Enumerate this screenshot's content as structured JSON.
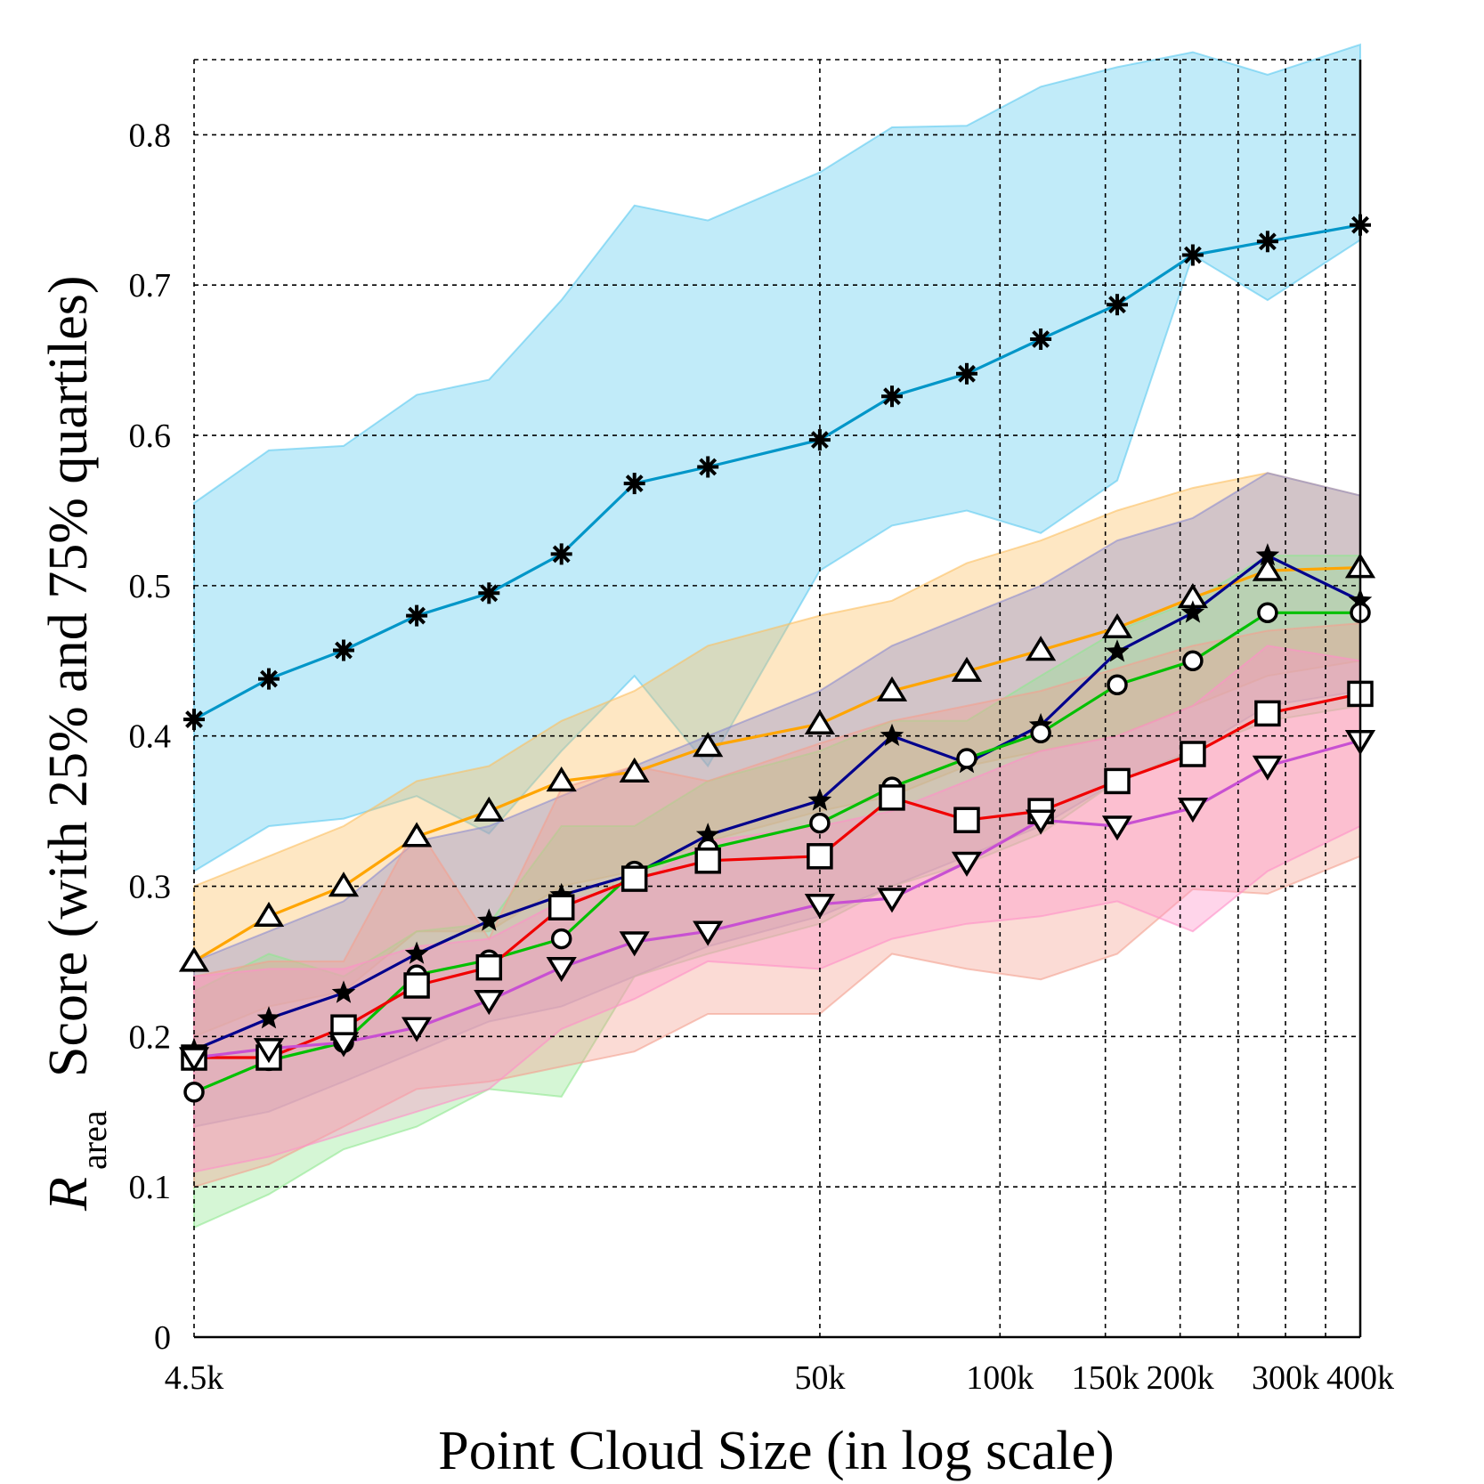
{
  "chart_data": {
    "type": "line",
    "xscale": "log",
    "xlabel": "Point Cloud Size (in log scale)",
    "ylabel": {
      "symbol": "R",
      "subscript": "area",
      "text": "Score (with 25% and 75% quartiles)"
    },
    "xlim": [
      4500,
      400000
    ],
    "ylim": [
      0,
      0.85
    ],
    "grid": true,
    "x_ticks": [
      {
        "value": 4500,
        "label": "4.5k"
      },
      {
        "value": 50000,
        "label": "50k"
      },
      {
        "value": 100000,
        "label": "100k"
      },
      {
        "value": 150000,
        "label": "150k"
      },
      {
        "value": 200000,
        "label": "200k"
      },
      {
        "value": 300000,
        "label": "300k"
      },
      {
        "value": 400000,
        "label": "400k"
      }
    ],
    "x_minor_grid": [
      250000,
      350000
    ],
    "y_ticks": [
      {
        "value": 0,
        "label": "0"
      },
      {
        "value": 0.1,
        "label": "0.1"
      },
      {
        "value": 0.2,
        "label": "0.2"
      },
      {
        "value": 0.3,
        "label": "0.3"
      },
      {
        "value": 0.4,
        "label": "0.4"
      },
      {
        "value": 0.5,
        "label": "0.5"
      },
      {
        "value": 0.6,
        "label": "0.6"
      },
      {
        "value": 0.7,
        "label": "0.7"
      },
      {
        "value": 0.8,
        "label": "0.8"
      }
    ],
    "x": [
      4500,
      6000,
      8000,
      10600,
      14000,
      18500,
      24500,
      32500,
      50000,
      66000,
      88000,
      117000,
      157000,
      210000,
      280000,
      400000
    ],
    "series": [
      {
        "color": "#0096c8",
        "marker": "asterisk",
        "band_color": "#5ccaf0",
        "values": [
          0.411,
          0.438,
          0.457,
          0.48,
          0.495,
          0.521,
          0.568,
          0.579,
          0.597,
          0.626,
          0.641,
          0.664,
          0.687,
          0.72,
          0.729,
          0.74
        ],
        "q25": [
          0.31,
          0.34,
          0.345,
          0.36,
          0.335,
          0.39,
          0.44,
          0.38,
          0.51,
          0.54,
          0.55,
          0.535,
          0.57,
          0.72,
          0.69,
          0.73
        ],
        "q75": [
          0.555,
          0.59,
          0.593,
          0.627,
          0.637,
          0.69,
          0.753,
          0.743,
          0.775,
          0.805,
          0.806,
          0.832,
          0.845,
          0.855,
          0.84,
          0.86
        ]
      },
      {
        "color": "#ffa500",
        "marker": "triangle-up",
        "band_color": "#fcc060",
        "values": [
          0.25,
          0.28,
          0.3,
          0.333,
          0.35,
          0.37,
          0.376,
          0.393,
          0.408,
          0.43,
          0.443,
          0.457,
          0.472,
          0.492,
          0.51,
          0.512
        ],
        "q25": [
          0.2,
          0.22,
          0.23,
          0.27,
          0.27,
          0.3,
          0.31,
          0.33,
          0.35,
          0.36,
          0.38,
          0.39,
          0.4,
          0.42,
          0.44,
          0.45
        ],
        "q75": [
          0.3,
          0.32,
          0.34,
          0.37,
          0.38,
          0.41,
          0.43,
          0.46,
          0.48,
          0.49,
          0.515,
          0.53,
          0.55,
          0.565,
          0.575,
          0.56
        ]
      },
      {
        "color": "#00008c",
        "marker": "star",
        "band_color": "#8c8cd0",
        "values": [
          0.191,
          0.212,
          0.229,
          0.255,
          0.277,
          0.294,
          0.308,
          0.334,
          0.357,
          0.4,
          0.382,
          0.407,
          0.456,
          0.482,
          0.52,
          0.49
        ],
        "q25": [
          0.14,
          0.15,
          0.17,
          0.19,
          0.21,
          0.22,
          0.24,
          0.26,
          0.28,
          0.3,
          0.32,
          0.34,
          0.37,
          0.39,
          0.42,
          0.43
        ],
        "q75": [
          0.25,
          0.27,
          0.29,
          0.33,
          0.34,
          0.36,
          0.38,
          0.4,
          0.43,
          0.46,
          0.48,
          0.5,
          0.53,
          0.545,
          0.575,
          0.56
        ]
      },
      {
        "color": "#00c000",
        "marker": "circle",
        "band_color": "#90e890",
        "values": [
          0.163,
          0.184,
          0.196,
          0.241,
          0.251,
          0.265,
          0.31,
          0.325,
          0.342,
          0.366,
          0.385,
          0.402,
          0.434,
          0.45,
          0.482,
          0.482
        ],
        "q25": [
          0.073,
          0.095,
          0.125,
          0.14,
          0.165,
          0.16,
          0.24,
          0.255,
          0.275,
          0.3,
          0.315,
          0.335,
          0.37,
          0.39,
          0.41,
          0.42
        ],
        "q75": [
          0.23,
          0.255,
          0.24,
          0.27,
          0.275,
          0.34,
          0.34,
          0.37,
          0.39,
          0.41,
          0.41,
          0.44,
          0.47,
          0.49,
          0.52,
          0.52
        ]
      },
      {
        "color": "#f00000",
        "marker": "square",
        "band_color": "#f4a090",
        "values": [
          0.186,
          0.186,
          0.206,
          0.234,
          0.246,
          0.286,
          0.305,
          0.317,
          0.32,
          0.359,
          0.344,
          0.35,
          0.37,
          0.388,
          0.415,
          0.428
        ],
        "q25": [
          0.1,
          0.115,
          0.14,
          0.165,
          0.17,
          0.18,
          0.19,
          0.215,
          0.215,
          0.255,
          0.245,
          0.238,
          0.255,
          0.298,
          0.295,
          0.32
        ],
        "q75": [
          0.24,
          0.25,
          0.25,
          0.34,
          0.265,
          0.365,
          0.38,
          0.37,
          0.395,
          0.41,
          0.42,
          0.43,
          0.445,
          0.46,
          0.47,
          0.475
        ]
      },
      {
        "color": "#c850d2",
        "marker": "triangle-down",
        "band_color": "#ff90c8",
        "values": [
          0.186,
          0.192,
          0.196,
          0.206,
          0.224,
          0.246,
          0.263,
          0.27,
          0.288,
          0.292,
          0.316,
          0.344,
          0.34,
          0.352,
          0.38,
          0.397
        ],
        "q25": [
          0.11,
          0.12,
          0.135,
          0.15,
          0.165,
          0.205,
          0.225,
          0.25,
          0.245,
          0.265,
          0.275,
          0.28,
          0.29,
          0.27,
          0.31,
          0.34
        ],
        "q75": [
          0.24,
          0.245,
          0.245,
          0.26,
          0.265,
          0.29,
          0.3,
          0.33,
          0.34,
          0.35,
          0.37,
          0.39,
          0.4,
          0.42,
          0.46,
          0.45
        ]
      }
    ]
  }
}
